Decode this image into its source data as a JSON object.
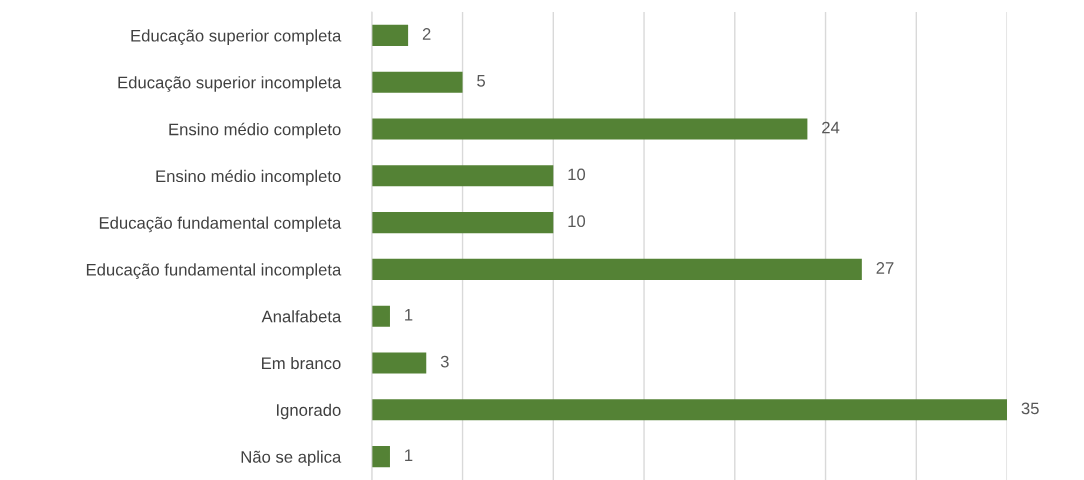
{
  "chart_data": {
    "type": "bar",
    "orientation": "horizontal",
    "categories": [
      "Educação superior completa",
      "Educação superior incompleta",
      "Ensino médio completo",
      "Ensino médio incompleto",
      "Educação fundamental completa",
      "Educação fundamental incompleta",
      "Analfabeta",
      "Em branco",
      "Ignorado",
      "Não se aplica"
    ],
    "values": [
      2,
      5,
      24,
      10,
      10,
      27,
      1,
      3,
      35,
      1
    ],
    "color": "#548235",
    "data_labels": true,
    "grid": "x",
    "tick_labels": "y",
    "xlim": [
      0,
      35
    ],
    "xticks": [
      {
        "value": 0,
        "label": null
      },
      {
        "value": 5,
        "label": null
      },
      {
        "value": 10,
        "label": null
      },
      {
        "value": 15,
        "label": null
      },
      {
        "value": 20,
        "label": null
      },
      {
        "value": 25,
        "label": null
      },
      {
        "value": 30,
        "label": null
      },
      {
        "value": 35,
        "label": null
      }
    ]
  }
}
